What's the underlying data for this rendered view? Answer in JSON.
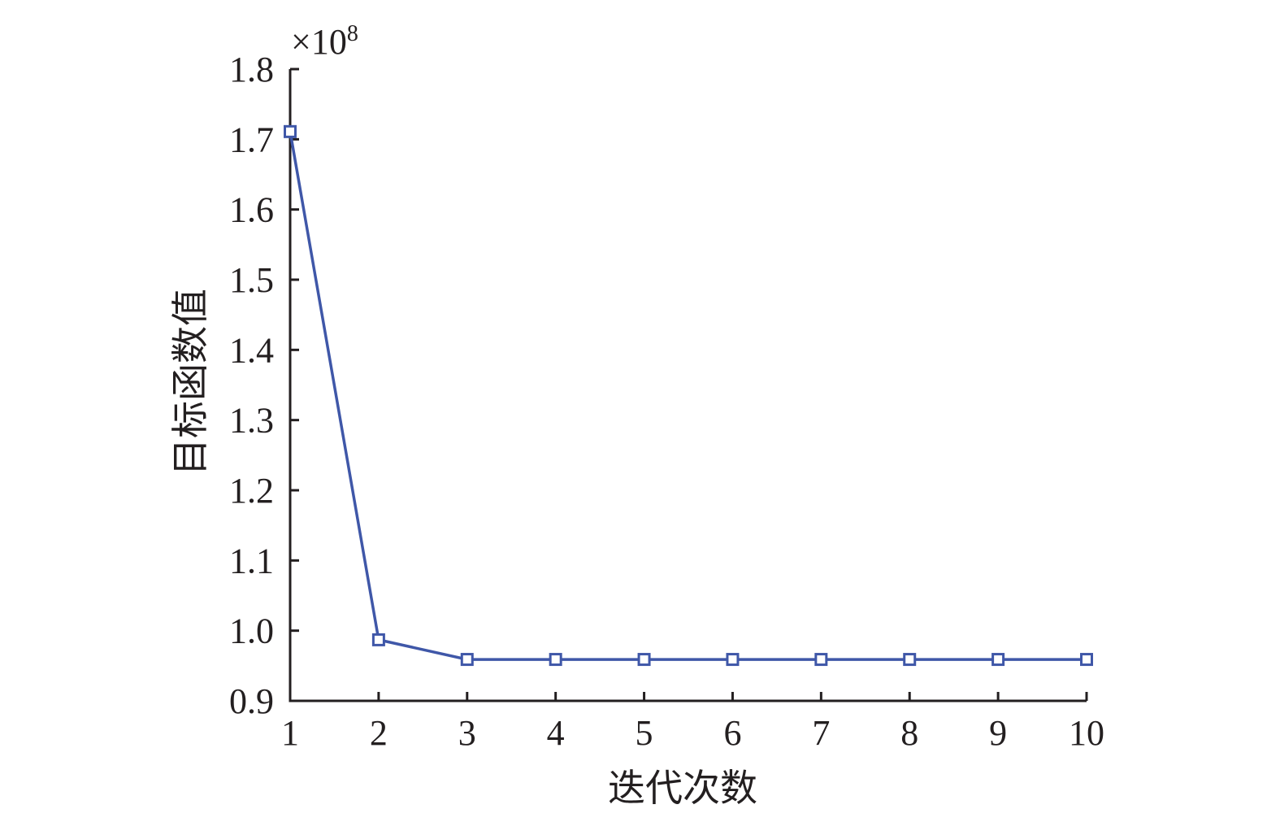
{
  "chart_data": {
    "type": "line",
    "xlabel": "迭代次数",
    "ylabel": "目标函数值",
    "y_multiplier": "×10",
    "y_multiplier_exp": "8",
    "x": [
      1,
      2,
      3,
      4,
      5,
      6,
      7,
      8,
      9,
      10
    ],
    "series": [
      {
        "values": [
          1.711,
          0.987,
          0.959,
          0.959,
          0.959,
          0.959,
          0.959,
          0.959,
          0.959,
          0.959
        ],
        "color": "#3f57a8",
        "marker": "square"
      }
    ],
    "xlim": [
      1,
      10
    ],
    "ylim": [
      0.9,
      1.8
    ],
    "xticks": [
      "1",
      "2",
      "3",
      "4",
      "5",
      "6",
      "7",
      "8",
      "9",
      "10"
    ],
    "yticks": [
      "0.9",
      "1.0",
      "1.1",
      "1.2",
      "1.3",
      "1.4",
      "1.5",
      "1.6",
      "1.7",
      "1.8"
    ],
    "grid": false,
    "legend": "none"
  }
}
